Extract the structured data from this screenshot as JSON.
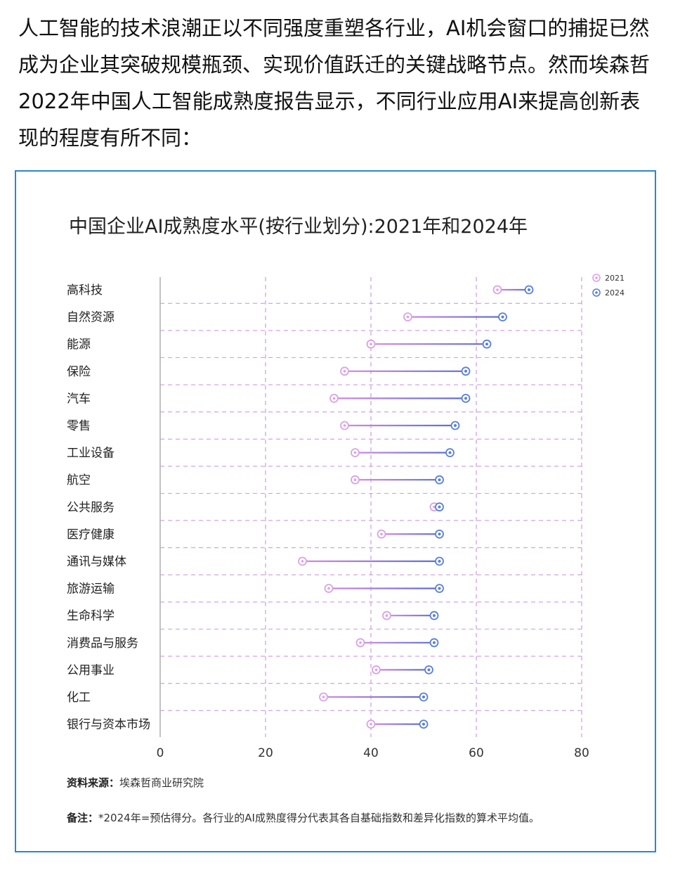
{
  "intro_text": "人工智能的技术浪潮正以不同强度重塑各行业，AI机会窗口的捕捉已然成为企业其突破规模瓶颈、实现价值跃迁的关键战略节点。然而埃森哲2022年中国人工智能成熟度报告显示，不同行业应用AI来提高创新表现的程度有所不同：",
  "chart_data": {
    "type": "dumbbell",
    "title": "中国企业AI成熟度水平(按行业划分):2021年和2024年",
    "xlim": [
      0,
      80
    ],
    "xticks": [
      0,
      20,
      40,
      60,
      80
    ],
    "grid": "dashed",
    "legend_position": "top-right",
    "categories": [
      "高科技",
      "自然资源",
      "能源",
      "保险",
      "汽车",
      "零售",
      "工业设备",
      "航空",
      "公共服务",
      "医疗健康",
      "通讯与媒体",
      "旅游运输",
      "生命科学",
      "消费品与服务",
      "公用事业",
      "化工",
      "银行与资本市场"
    ],
    "series": [
      {
        "name": "2021",
        "color": "#d9a3e6",
        "values": [
          64,
          47,
          40,
          35,
          33,
          35,
          37,
          37,
          52,
          42,
          27,
          32,
          43,
          38,
          41,
          31,
          40
        ]
      },
      {
        "name": "2024",
        "color": "#5b7fd6",
        "values": [
          70,
          65,
          62,
          58,
          58,
          56,
          55,
          53,
          53,
          53,
          53,
          53,
          52,
          52,
          51,
          50,
          50
        ]
      }
    ]
  },
  "footer": {
    "source_label": "资料来源：",
    "source_text": "埃森哲商业研究院",
    "note_label": "备注：",
    "note_text": "*2024年=预估得分。各行业的AI成熟度得分代表其各自基础指数和差异化指数的算术平均值。"
  },
  "colors": {
    "frame": "#2f86c8",
    "grid": "#cf9be0",
    "text": "#222222"
  }
}
